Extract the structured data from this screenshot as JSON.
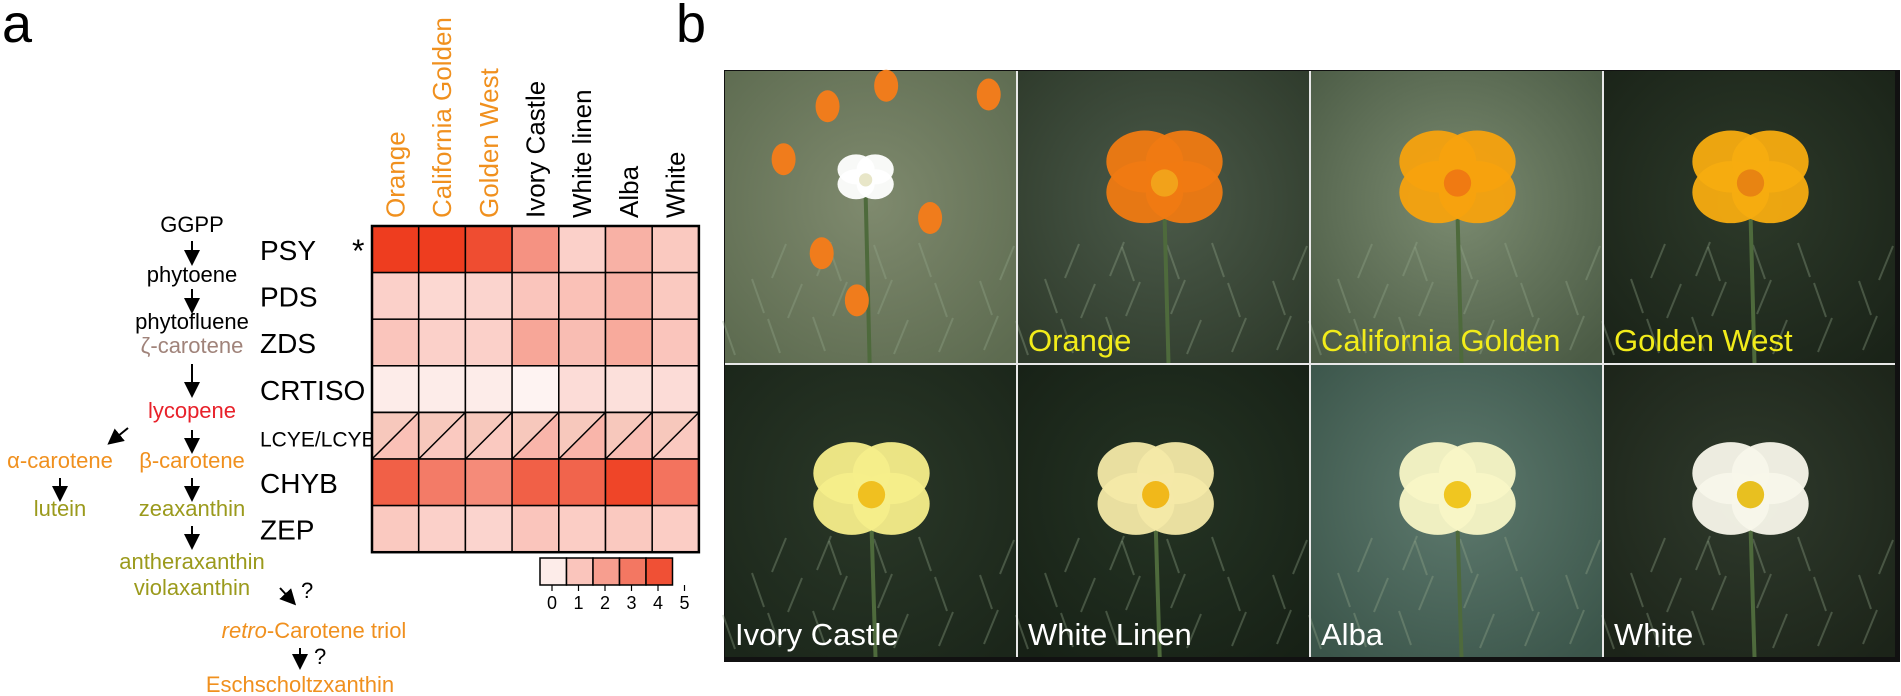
{
  "panels": {
    "a": "a",
    "b": "b"
  },
  "colors": {
    "orange": "#f0901e",
    "red": "#e8212a",
    "olive": "#9b9a1c",
    "brown": "#a0837a",
    "black": "#000000",
    "photo_yellow": "#f2ec1a",
    "photo_white": "#ffffff"
  },
  "pathway": {
    "nodes": [
      {
        "id": "ggpp",
        "label": "GGPP",
        "color": "#000000"
      },
      {
        "id": "phytoene",
        "label": "phytoene",
        "color": "#000000"
      },
      {
        "id": "phytofluene",
        "label": "phytofluene",
        "color": "#000000"
      },
      {
        "id": "zeta",
        "label": "ζ-carotene",
        "color": "#a0837a"
      },
      {
        "id": "lycopene",
        "label": "lycopene",
        "color": "#e8212a"
      },
      {
        "id": "alpha",
        "label": "α-carotene",
        "color": "#f0901e"
      },
      {
        "id": "beta",
        "label": "β-carotene",
        "color": "#f0901e"
      },
      {
        "id": "lutein",
        "label": "lutein",
        "color": "#9b9a1c"
      },
      {
        "id": "zeaxanthin",
        "label": "zeaxanthin",
        "color": "#9b9a1c"
      },
      {
        "id": "antheraxanthin",
        "label": "antheraxanthin",
        "color": "#9b9a1c"
      },
      {
        "id": "violaxanthin",
        "label": "violaxanthin",
        "color": "#9b9a1c"
      },
      {
        "id": "retro_prefix",
        "label": "retro",
        "color": "#f0901e"
      },
      {
        "id": "retro_rest",
        "label": "-Carotene triol",
        "color": "#f0901e"
      },
      {
        "id": "esch",
        "label": "Eschscholtzxanthin",
        "color": "#f0901e"
      }
    ],
    "unknown_marks": [
      "?",
      "?"
    ]
  },
  "heatmap": {
    "genes": [
      "PSY",
      "PDS",
      "ZDS",
      "CRTISO",
      "LCYE/LCYB",
      "CHYB",
      "ZEP"
    ],
    "significance_mark": "*",
    "cultivars": [
      {
        "name": "Orange",
        "color": "#f0901e"
      },
      {
        "name": "California Golden",
        "color": "#f0901e"
      },
      {
        "name": "Golden West",
        "color": "#f0901e"
      },
      {
        "name": "Ivory Castle",
        "color": "#000000"
      },
      {
        "name": "White linen",
        "color": "#000000"
      },
      {
        "name": "Alba",
        "color": "#000000"
      },
      {
        "name": "White",
        "color": "#000000"
      }
    ],
    "values": [
      [
        5,
        5,
        4.6,
        2.8,
        1.2,
        2.0,
        1.4
      ],
      [
        1.2,
        1.0,
        1.1,
        1.5,
        1.6,
        2.0,
        1.4
      ],
      [
        1.5,
        1.2,
        1.2,
        2.3,
        1.7,
        2.2,
        1.5
      ],
      [
        0.5,
        0.5,
        0.5,
        0.3,
        0.9,
        0.8,
        0.9
      ],
      [
        1.6,
        1.4,
        1.4,
        1.9,
        1.9,
        1.7,
        1.4
      ],
      [
        4.1,
        3.4,
        3.0,
        4.1,
        4.0,
        4.8,
        3.6
      ],
      [
        1.4,
        1.2,
        1.1,
        1.5,
        1.3,
        1.4,
        1.3
      ]
    ],
    "split_row": 4,
    "scale": {
      "min_color": "#ffffff",
      "max_color": "#ee3d1f",
      "labels": [
        "0",
        "1",
        "2",
        "3",
        "4",
        "5"
      ]
    }
  },
  "photos": [
    {
      "label": "",
      "label_color": "#f2ec1a",
      "bg": [
        "#7f8a6e",
        "#5d6b50"
      ],
      "flower": "#ffffff",
      "center": "#e8e6c8"
    },
    {
      "label": "Orange",
      "label_color": "#f2ec1a",
      "bg": [
        "#4b5a49",
        "#2e3a2b"
      ],
      "flower": "#f07a12",
      "center": "#f2a21a"
    },
    {
      "label": "California Golden",
      "label_color": "#f2ec1a",
      "bg": [
        "#7b8b70",
        "#4b5b45"
      ],
      "flower": "#f7a20e",
      "center": "#f07a12"
    },
    {
      "label": "Golden West",
      "label_color": "#f2ec1a",
      "bg": [
        "#2d3a2a",
        "#1a2318"
      ],
      "flower": "#f7ac10",
      "center": "#e88412"
    },
    {
      "label": "Ivory Castle",
      "label_color": "#ffffff",
      "bg": [
        "#2a3828",
        "#1b261a"
      ],
      "flower": "#f6ee8a",
      "center": "#f0c020"
    },
    {
      "label": "White Linen",
      "label_color": "#ffffff",
      "bg": [
        "#253424",
        "#172116"
      ],
      "flower": "#f4e9a8",
      "center": "#f1b81a"
    },
    {
      "label": "Alba",
      "label_color": "#ffffff",
      "bg": [
        "#5e7a6e",
        "#3b554a"
      ],
      "flower": "#f8f6c6",
      "center": "#f0c620"
    },
    {
      "label": "White",
      "label_color": "#ffffff",
      "bg": [
        "#2f3a2c",
        "#1c2419"
      ],
      "flower": "#f8f7ea",
      "center": "#e8c020"
    }
  ]
}
